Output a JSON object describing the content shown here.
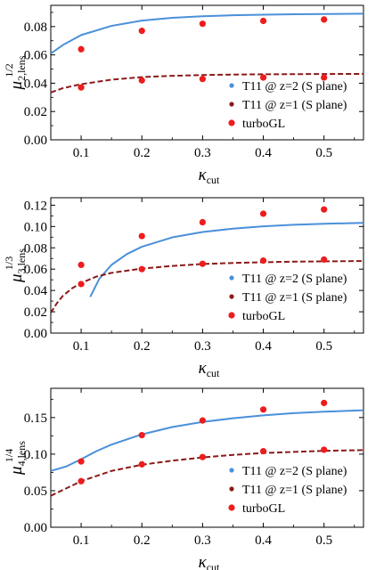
{
  "chart_data": [
    {
      "type": "line",
      "xlabel_symbol": "κ",
      "xlabel_sub": "cut",
      "ylabel_symbol": "μ",
      "ylabel_sub": "2,lens",
      "ylabel_sup": "1/2",
      "xlim": [
        0.05,
        0.565
      ],
      "ylim": [
        0,
        0.095
      ],
      "xticks": [
        0.1,
        0.2,
        0.3,
        0.4,
        0.5
      ],
      "xtick_labels": [
        "0.1",
        "0.2",
        "0.3",
        "0.4",
        "0.5"
      ],
      "yticks": [
        0,
        0.02,
        0.04,
        0.06,
        0.08
      ],
      "ytick_labels": [
        "0.00",
        "0.02",
        "0.04",
        "0.06",
        "0.08"
      ],
      "legend_position": "bottom-right",
      "series": [
        {
          "name": "T11 @ z=2 (S plane)",
          "style": "solid",
          "color": "#4a90d9",
          "x": [
            0.05,
            0.07,
            0.1,
            0.15,
            0.2,
            0.25,
            0.3,
            0.35,
            0.4,
            0.45,
            0.5,
            0.565
          ],
          "y": [
            0.061,
            0.067,
            0.074,
            0.0805,
            0.0842,
            0.0862,
            0.0873,
            0.088,
            0.0884,
            0.0887,
            0.0889,
            0.0891
          ]
        },
        {
          "name": "T11 @ z=1 (S plane)",
          "style": "dashed",
          "color": "#8b1a1a",
          "x": [
            0.05,
            0.07,
            0.1,
            0.15,
            0.2,
            0.25,
            0.3,
            0.35,
            0.4,
            0.45,
            0.5,
            0.565
          ],
          "y": [
            0.0335,
            0.0365,
            0.0393,
            0.0425,
            0.0443,
            0.0452,
            0.0458,
            0.0461,
            0.0463,
            0.0464,
            0.0465,
            0.0466
          ]
        },
        {
          "name": "turboGL",
          "style": "points",
          "color": "#ee1c1c",
          "x": [
            0.1,
            0.2,
            0.3,
            0.4,
            0.5,
            0.1,
            0.2,
            0.3,
            0.4,
            0.5
          ],
          "y": [
            0.064,
            0.077,
            0.082,
            0.084,
            0.085,
            0.037,
            0.042,
            0.043,
            0.044,
            0.044
          ]
        }
      ]
    },
    {
      "type": "line",
      "xlabel_symbol": "κ",
      "xlabel_sub": "cut",
      "ylabel_symbol": "μ",
      "ylabel_sub": "3,lens",
      "ylabel_sup": "1/3",
      "xlim": [
        0.05,
        0.565
      ],
      "ylim": [
        0,
        0.127
      ],
      "xticks": [
        0.1,
        0.2,
        0.3,
        0.4,
        0.5
      ],
      "xtick_labels": [
        "0.1",
        "0.2",
        "0.3",
        "0.4",
        "0.5"
      ],
      "yticks": [
        0,
        0.02,
        0.04,
        0.06,
        0.08,
        0.1,
        0.12
      ],
      "ytick_labels": [
        "0.00",
        "0.02",
        "0.04",
        "0.06",
        "0.08",
        "0.10",
        "0.12"
      ],
      "legend_position": "bottom-right",
      "series": [
        {
          "name": "T11 @ z=2 (S plane)",
          "style": "solid",
          "color": "#4a90d9",
          "x": [
            0.115,
            0.13,
            0.15,
            0.175,
            0.2,
            0.25,
            0.3,
            0.35,
            0.4,
            0.45,
            0.5,
            0.565
          ],
          "y": [
            0.034,
            0.051,
            0.064,
            0.074,
            0.081,
            0.0898,
            0.0948,
            0.098,
            0.1002,
            0.1016,
            0.1026,
            0.1034
          ]
        },
        {
          "name": "T11 @ z=1 (S plane)",
          "style": "dashed",
          "color": "#8b1a1a",
          "x": [
            0.05,
            0.06,
            0.07,
            0.085,
            0.1,
            0.125,
            0.15,
            0.2,
            0.25,
            0.3,
            0.35,
            0.4,
            0.45,
            0.5,
            0.565
          ],
          "y": [
            0.019,
            0.028,
            0.035,
            0.042,
            0.047,
            0.053,
            0.0565,
            0.0605,
            0.063,
            0.0648,
            0.0658,
            0.0665,
            0.067,
            0.0673,
            0.0676
          ]
        },
        {
          "name": "turboGL",
          "style": "points",
          "color": "#ee1c1c",
          "x": [
            0.1,
            0.2,
            0.3,
            0.4,
            0.5,
            0.1,
            0.2,
            0.3,
            0.4,
            0.5
          ],
          "y": [
            0.064,
            0.091,
            0.104,
            0.112,
            0.116,
            0.046,
            0.06,
            0.065,
            0.068,
            0.069
          ]
        }
      ]
    },
    {
      "type": "line",
      "xlabel_symbol": "κ",
      "xlabel_sub": "cut",
      "ylabel_symbol": "μ",
      "ylabel_sub": "4,lens",
      "ylabel_sup": "1/4",
      "xlim": [
        0.05,
        0.565
      ],
      "ylim": [
        0,
        0.19
      ],
      "xticks": [
        0.1,
        0.2,
        0.3,
        0.4,
        0.5
      ],
      "xtick_labels": [
        "0.1",
        "0.2",
        "0.3",
        "0.4",
        "0.5"
      ],
      "yticks": [
        0,
        0.05,
        0.1,
        0.15
      ],
      "ytick_labels": [
        "0.00",
        "0.05",
        "0.10",
        "0.15"
      ],
      "legend_position": "bottom-right",
      "series": [
        {
          "name": "T11 @ z=2 (S plane)",
          "style": "solid",
          "color": "#4a90d9",
          "x": [
            0.05,
            0.075,
            0.1,
            0.125,
            0.15,
            0.2,
            0.25,
            0.3,
            0.35,
            0.4,
            0.45,
            0.5,
            0.565
          ],
          "y": [
            0.077,
            0.083,
            0.093,
            0.104,
            0.113,
            0.127,
            0.137,
            0.144,
            0.149,
            0.153,
            0.156,
            0.158,
            0.16
          ]
        },
        {
          "name": "T11 @ z=1 (S plane)",
          "style": "dashed",
          "color": "#8b1a1a",
          "x": [
            0.05,
            0.075,
            0.1,
            0.15,
            0.2,
            0.25,
            0.3,
            0.35,
            0.4,
            0.45,
            0.5,
            0.565
          ],
          "y": [
            0.043,
            0.053,
            0.063,
            0.077,
            0.0855,
            0.091,
            0.0955,
            0.099,
            0.1015,
            0.103,
            0.1045,
            0.1055
          ]
        },
        {
          "name": "turboGL",
          "style": "points",
          "color": "#ee1c1c",
          "x": [
            0.1,
            0.2,
            0.3,
            0.4,
            0.5,
            0.1,
            0.2,
            0.3,
            0.4,
            0.5
          ],
          "y": [
            0.09,
            0.126,
            0.146,
            0.161,
            0.17,
            0.063,
            0.086,
            0.096,
            0.104,
            0.106
          ]
        }
      ]
    }
  ]
}
